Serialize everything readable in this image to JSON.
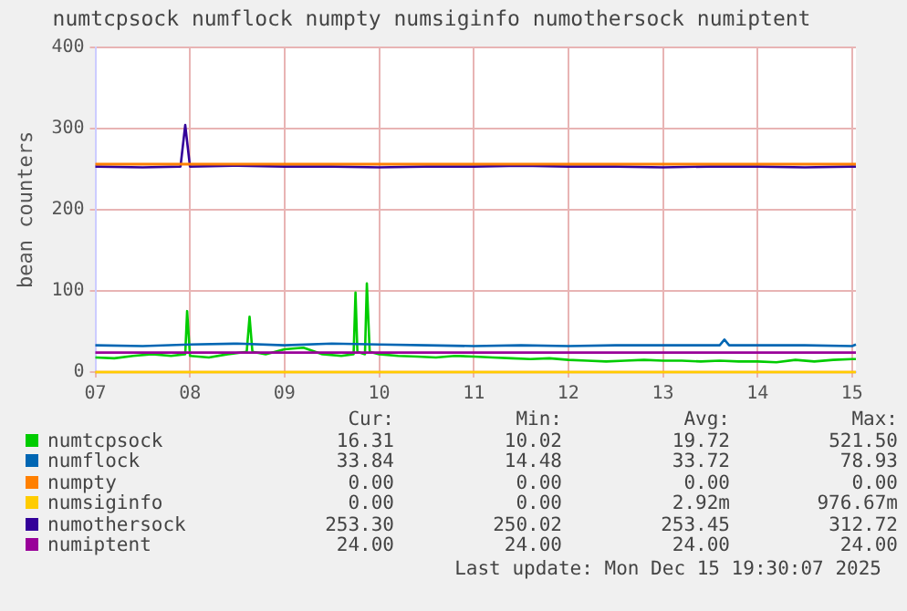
{
  "chart_data": {
    "type": "line",
    "title": "numtcpsock numflock numpty numsiginfo numothersock numiptent",
    "ylabel": "bean counters",
    "xlim": [
      7,
      15.04
    ],
    "xticks": [
      {
        "value": 7,
        "label": "07"
      },
      {
        "value": 8,
        "label": "08"
      },
      {
        "value": 9,
        "label": "09"
      },
      {
        "value": 10,
        "label": "10"
      },
      {
        "value": 11,
        "label": "11"
      },
      {
        "value": 12,
        "label": "12"
      },
      {
        "value": 13,
        "label": "13"
      },
      {
        "value": 14,
        "label": "14"
      },
      {
        "value": 15,
        "label": "15"
      }
    ],
    "ylim": [
      0,
      400
    ],
    "yticks": [
      0,
      100,
      200,
      300,
      400
    ],
    "grid": true,
    "legend": "bottom",
    "marker": "none",
    "ref_lines": [
      {
        "axis": "y",
        "value": 256,
        "color": "#ff8000"
      }
    ],
    "series": [
      {
        "name": "numtcpsock",
        "color": "#00cc00",
        "x": [
          7.0,
          7.2,
          7.4,
          7.6,
          7.8,
          7.95,
          7.97,
          8.0,
          8.2,
          8.4,
          8.6,
          8.63,
          8.66,
          8.8,
          9.0,
          9.2,
          9.4,
          9.6,
          9.73,
          9.75,
          9.77,
          9.85,
          9.87,
          9.9,
          10.0,
          10.2,
          10.4,
          10.6,
          10.8,
          11.0,
          11.2,
          11.4,
          11.6,
          11.8,
          12.0,
          12.2,
          12.4,
          12.6,
          12.8,
          13.0,
          13.2,
          13.4,
          13.6,
          13.8,
          14.0,
          14.2,
          14.4,
          14.6,
          14.8,
          15.0,
          15.04
        ],
        "values": [
          18,
          17,
          20,
          22,
          20,
          22,
          75,
          20,
          18,
          22,
          25,
          68,
          25,
          22,
          28,
          30,
          22,
          20,
          22,
          98,
          25,
          22,
          109,
          25,
          22,
          20,
          19,
          18,
          20,
          19,
          18,
          17,
          16,
          17,
          15,
          14,
          13,
          14,
          15,
          14,
          14,
          13,
          14,
          13,
          13,
          12,
          15,
          13,
          15,
          16,
          16
        ]
      },
      {
        "name": "numflock",
        "color": "#0066b3",
        "x": [
          7.0,
          7.5,
          8.0,
          8.5,
          9.0,
          9.5,
          10.0,
          10.5,
          11.0,
          11.5,
          12.0,
          12.5,
          13.0,
          13.6,
          13.65,
          13.7,
          14.0,
          14.5,
          15.0,
          15.04
        ],
        "values": [
          33,
          32,
          34,
          35,
          33,
          35,
          34,
          33,
          32,
          33,
          32,
          33,
          33,
          33,
          40,
          33,
          33,
          33,
          32,
          34
        ]
      },
      {
        "name": "numpty",
        "color": "#ff8000",
        "x": [
          7,
          15.04
        ],
        "values": [
          0,
          0
        ]
      },
      {
        "name": "numsiginfo",
        "color": "#ffcc00",
        "x": [
          7,
          15.04
        ],
        "values": [
          0,
          0
        ]
      },
      {
        "name": "numothersock",
        "color": "#330099",
        "x": [
          7.0,
          7.5,
          7.9,
          7.95,
          8.0,
          8.5,
          9.0,
          9.5,
          10.0,
          10.5,
          11.0,
          11.5,
          12.0,
          12.5,
          13.0,
          13.5,
          14.0,
          14.5,
          15.0,
          15.04
        ],
        "values": [
          253,
          252,
          253,
          304,
          253,
          254,
          253,
          253,
          252,
          253,
          253,
          254,
          253,
          253,
          252,
          253,
          253,
          252,
          253,
          253
        ]
      },
      {
        "name": "numiptent",
        "color": "#990099",
        "x": [
          7,
          15.04
        ],
        "values": [
          24,
          24
        ]
      }
    ],
    "annotations": [
      "Cur:",
      "Min:",
      "Avg:",
      "Max:",
      "16.31",
      "10.02",
      "19.72",
      "521.50",
      "33.84",
      "14.48",
      "33.72",
      "78.93",
      "0.00",
      "0.00",
      "0.00",
      "0.00",
      "0.00",
      "0.00",
      "2.92m",
      "976.67m",
      "253.30",
      "250.02",
      "253.45",
      "312.72",
      "24.00",
      "24.00",
      "24.00",
      "24.00",
      "Last update: Mon Dec 15 19:30:07 2025"
    ]
  }
}
